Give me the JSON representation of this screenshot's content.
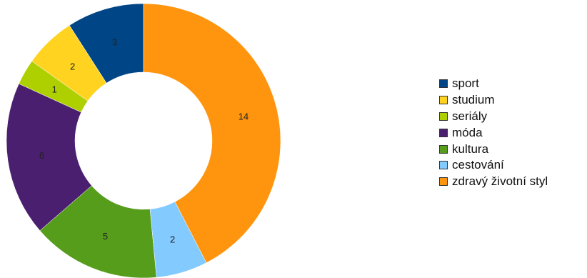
{
  "chart_data": {
    "type": "pie",
    "variant": "donut",
    "categories": [
      "sport",
      "studium",
      "seriály",
      "móda",
      "kultura",
      "cestování",
      "zdravý životní styl"
    ],
    "values": [
      3,
      2,
      1,
      6,
      5,
      2,
      14
    ],
    "data_labels": [
      "3",
      "2",
      "1",
      "6",
      "5",
      "2",
      "14"
    ],
    "colors": [
      "#004586",
      "#ffd320",
      "#aecf00",
      "#4b1f6f",
      "#579d1c",
      "#83caff",
      "#ff950e"
    ],
    "title": "",
    "legend": "right"
  }
}
